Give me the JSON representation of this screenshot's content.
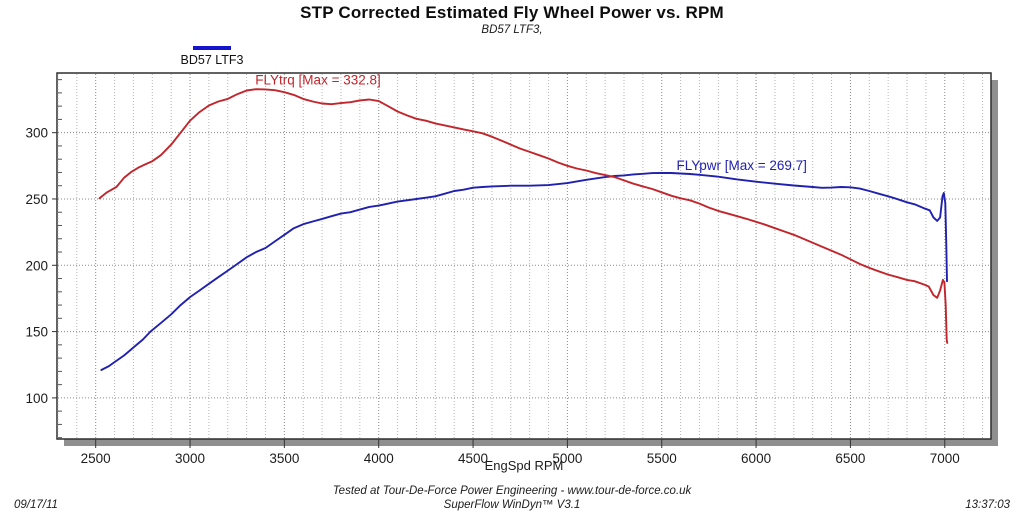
{
  "chart": {
    "title": "STP Corrected Estimated Fly Wheel Power vs. RPM",
    "subtitle": "BD57 LTF3,",
    "legend": {
      "label": "BD57 LTF3",
      "swatch_color": "#1414cc"
    },
    "xlabel": "EngSpd RPM",
    "footer": {
      "line1": "Tested at Tour-De-Force Power Engineering - www.tour-de-force.co.uk",
      "line2": "SuperFlow WinDyn™ V3.1",
      "date": "09/17/11",
      "time": "13:37:03"
    }
  },
  "chart_data": {
    "type": "line",
    "title": "STP Corrected Estimated Fly Wheel Power vs. RPM",
    "subtitle": "BD57 LTF3,",
    "xlabel": "EngSpd RPM",
    "ylabel": "",
    "xlim": [
      2295,
      7245
    ],
    "ylim": [
      69,
      345
    ],
    "x_major_ticks": [
      2500,
      3000,
      3500,
      4000,
      4500,
      5000,
      5500,
      6000,
      6500,
      7000
    ],
    "x_minor_step": 100,
    "y_major_ticks": [
      100,
      150,
      200,
      250,
      300
    ],
    "y_minor_step": 10,
    "grid": {
      "major_color": "#8a8a8a",
      "minor_color": "#b5b5b5",
      "border_color": "#2e2e2e",
      "shadow_color": "#8f8f8f"
    },
    "legend_position": "top-left-above-plot",
    "series": [
      {
        "name": "FLYpwr",
        "label": "FLYpwr [Max = 269.7]",
        "max": 269.7,
        "color": "#2121b0",
        "label_anchor": {
          "rpm": 5578,
          "value": 272.0
        },
        "points": [
          [
            2530,
            121
          ],
          [
            2570,
            124
          ],
          [
            2600,
            127
          ],
          [
            2650,
            132
          ],
          [
            2700,
            138
          ],
          [
            2750,
            144
          ],
          [
            2790,
            150
          ],
          [
            2850,
            157
          ],
          [
            2900,
            163
          ],
          [
            2950,
            170
          ],
          [
            3000,
            176
          ],
          [
            3050,
            181
          ],
          [
            3100,
            186
          ],
          [
            3150,
            191
          ],
          [
            3200,
            196
          ],
          [
            3250,
            201
          ],
          [
            3300,
            206
          ],
          [
            3350,
            210
          ],
          [
            3400,
            213
          ],
          [
            3450,
            218
          ],
          [
            3500,
            223
          ],
          [
            3550,
            228
          ],
          [
            3600,
            231
          ],
          [
            3650,
            233
          ],
          [
            3700,
            235
          ],
          [
            3750,
            237
          ],
          [
            3800,
            239
          ],
          [
            3850,
            240
          ],
          [
            3900,
            242
          ],
          [
            3950,
            244
          ],
          [
            4000,
            245
          ],
          [
            4100,
            248
          ],
          [
            4200,
            250
          ],
          [
            4250,
            251
          ],
          [
            4300,
            252
          ],
          [
            4350,
            254
          ],
          [
            4400,
            256
          ],
          [
            4450,
            257
          ],
          [
            4500,
            258.5
          ],
          [
            4550,
            259
          ],
          [
            4600,
            259.5
          ],
          [
            4700,
            260
          ],
          [
            4800,
            260
          ],
          [
            4900,
            260.5
          ],
          [
            5000,
            262
          ],
          [
            5100,
            264.5
          ],
          [
            5150,
            265.5
          ],
          [
            5200,
            266.5
          ],
          [
            5250,
            267.3
          ],
          [
            5300,
            267.8
          ],
          [
            5350,
            268.5
          ],
          [
            5400,
            269
          ],
          [
            5450,
            269.5
          ],
          [
            5500,
            269.7
          ],
          [
            5550,
            269.6
          ],
          [
            5600,
            269.2
          ],
          [
            5650,
            268.8
          ],
          [
            5700,
            268.2
          ],
          [
            5800,
            266.8
          ],
          [
            5900,
            264.8
          ],
          [
            6000,
            263
          ],
          [
            6100,
            261.5
          ],
          [
            6200,
            260.2
          ],
          [
            6300,
            259
          ],
          [
            6350,
            258.4
          ],
          [
            6400,
            258.6
          ],
          [
            6450,
            259
          ],
          [
            6500,
            258.8
          ],
          [
            6550,
            257.8
          ],
          [
            6600,
            256
          ],
          [
            6650,
            254
          ],
          [
            6700,
            252
          ],
          [
            6750,
            249.8
          ],
          [
            6800,
            247.5
          ],
          [
            6840,
            246
          ],
          [
            6890,
            243
          ],
          [
            6920,
            241.5
          ],
          [
            6940,
            236
          ],
          [
            6960,
            233.5
          ],
          [
            6975,
            236
          ],
          [
            6988,
            252
          ],
          [
            6995,
            254.5
          ],
          [
            7003,
            247
          ],
          [
            7008,
            215
          ],
          [
            7012,
            188
          ]
        ]
      },
      {
        "name": "FLYtrq",
        "label": "FLYtrq [Max = 332.8]",
        "max": 332.8,
        "color": "#c1262c",
        "label_anchor": {
          "rpm": 3346,
          "value": 336.5
        },
        "points": [
          [
            2520,
            250.5
          ],
          [
            2560,
            255
          ],
          [
            2610,
            259
          ],
          [
            2650,
            266
          ],
          [
            2690,
            270.5
          ],
          [
            2730,
            274
          ],
          [
            2770,
            276.5
          ],
          [
            2800,
            278.5
          ],
          [
            2845,
            283
          ],
          [
            2900,
            291
          ],
          [
            2950,
            300
          ],
          [
            3000,
            309
          ],
          [
            3050,
            315.5
          ],
          [
            3100,
            320.5
          ],
          [
            3150,
            323.5
          ],
          [
            3200,
            325.5
          ],
          [
            3250,
            329
          ],
          [
            3300,
            331.8
          ],
          [
            3350,
            332.8
          ],
          [
            3400,
            332.6
          ],
          [
            3450,
            332
          ],
          [
            3500,
            330.5
          ],
          [
            3550,
            328.5
          ],
          [
            3600,
            325.5
          ],
          [
            3650,
            323.5
          ],
          [
            3700,
            322
          ],
          [
            3750,
            321.5
          ],
          [
            3800,
            322.3
          ],
          [
            3850,
            323
          ],
          [
            3900,
            324.3
          ],
          [
            3950,
            325
          ],
          [
            4000,
            323.8
          ],
          [
            4050,
            320
          ],
          [
            4100,
            316
          ],
          [
            4150,
            313
          ],
          [
            4200,
            310.5
          ],
          [
            4250,
            309
          ],
          [
            4300,
            307
          ],
          [
            4350,
            305.5
          ],
          [
            4400,
            304
          ],
          [
            4450,
            302.5
          ],
          [
            4500,
            301
          ],
          [
            4550,
            299.5
          ],
          [
            4600,
            297
          ],
          [
            4650,
            294
          ],
          [
            4700,
            291
          ],
          [
            4750,
            288
          ],
          [
            4800,
            285.5
          ],
          [
            4850,
            283
          ],
          [
            4900,
            280.5
          ],
          [
            4950,
            277.5
          ],
          [
            5000,
            275
          ],
          [
            5050,
            273
          ],
          [
            5100,
            271.5
          ],
          [
            5150,
            269.5
          ],
          [
            5200,
            268
          ],
          [
            5250,
            266.5
          ],
          [
            5300,
            264
          ],
          [
            5350,
            261.5
          ],
          [
            5400,
            259.5
          ],
          [
            5450,
            257.5
          ],
          [
            5500,
            255
          ],
          [
            5550,
            252.5
          ],
          [
            5600,
            250.5
          ],
          [
            5650,
            249
          ],
          [
            5700,
            246.5
          ],
          [
            5750,
            243.5
          ],
          [
            5800,
            241
          ],
          [
            5850,
            239
          ],
          [
            5900,
            237
          ],
          [
            5950,
            235
          ],
          [
            6000,
            232.8
          ],
          [
            6050,
            230.5
          ],
          [
            6100,
            228
          ],
          [
            6150,
            225.5
          ],
          [
            6200,
            223
          ],
          [
            6250,
            220
          ],
          [
            6300,
            217
          ],
          [
            6350,
            214
          ],
          [
            6400,
            211
          ],
          [
            6450,
            208
          ],
          [
            6500,
            204.5
          ],
          [
            6550,
            201
          ],
          [
            6600,
            198
          ],
          [
            6650,
            195.5
          ],
          [
            6700,
            193
          ],
          [
            6750,
            191
          ],
          [
            6800,
            189
          ],
          [
            6840,
            188
          ],
          [
            6890,
            185.5
          ],
          [
            6915,
            184
          ],
          [
            6940,
            177.5
          ],
          [
            6960,
            175.5
          ],
          [
            6975,
            181
          ],
          [
            6990,
            189
          ],
          [
            6998,
            187
          ],
          [
            7005,
            170
          ],
          [
            7010,
            144
          ],
          [
            7013,
            141.5
          ]
        ]
      }
    ]
  }
}
